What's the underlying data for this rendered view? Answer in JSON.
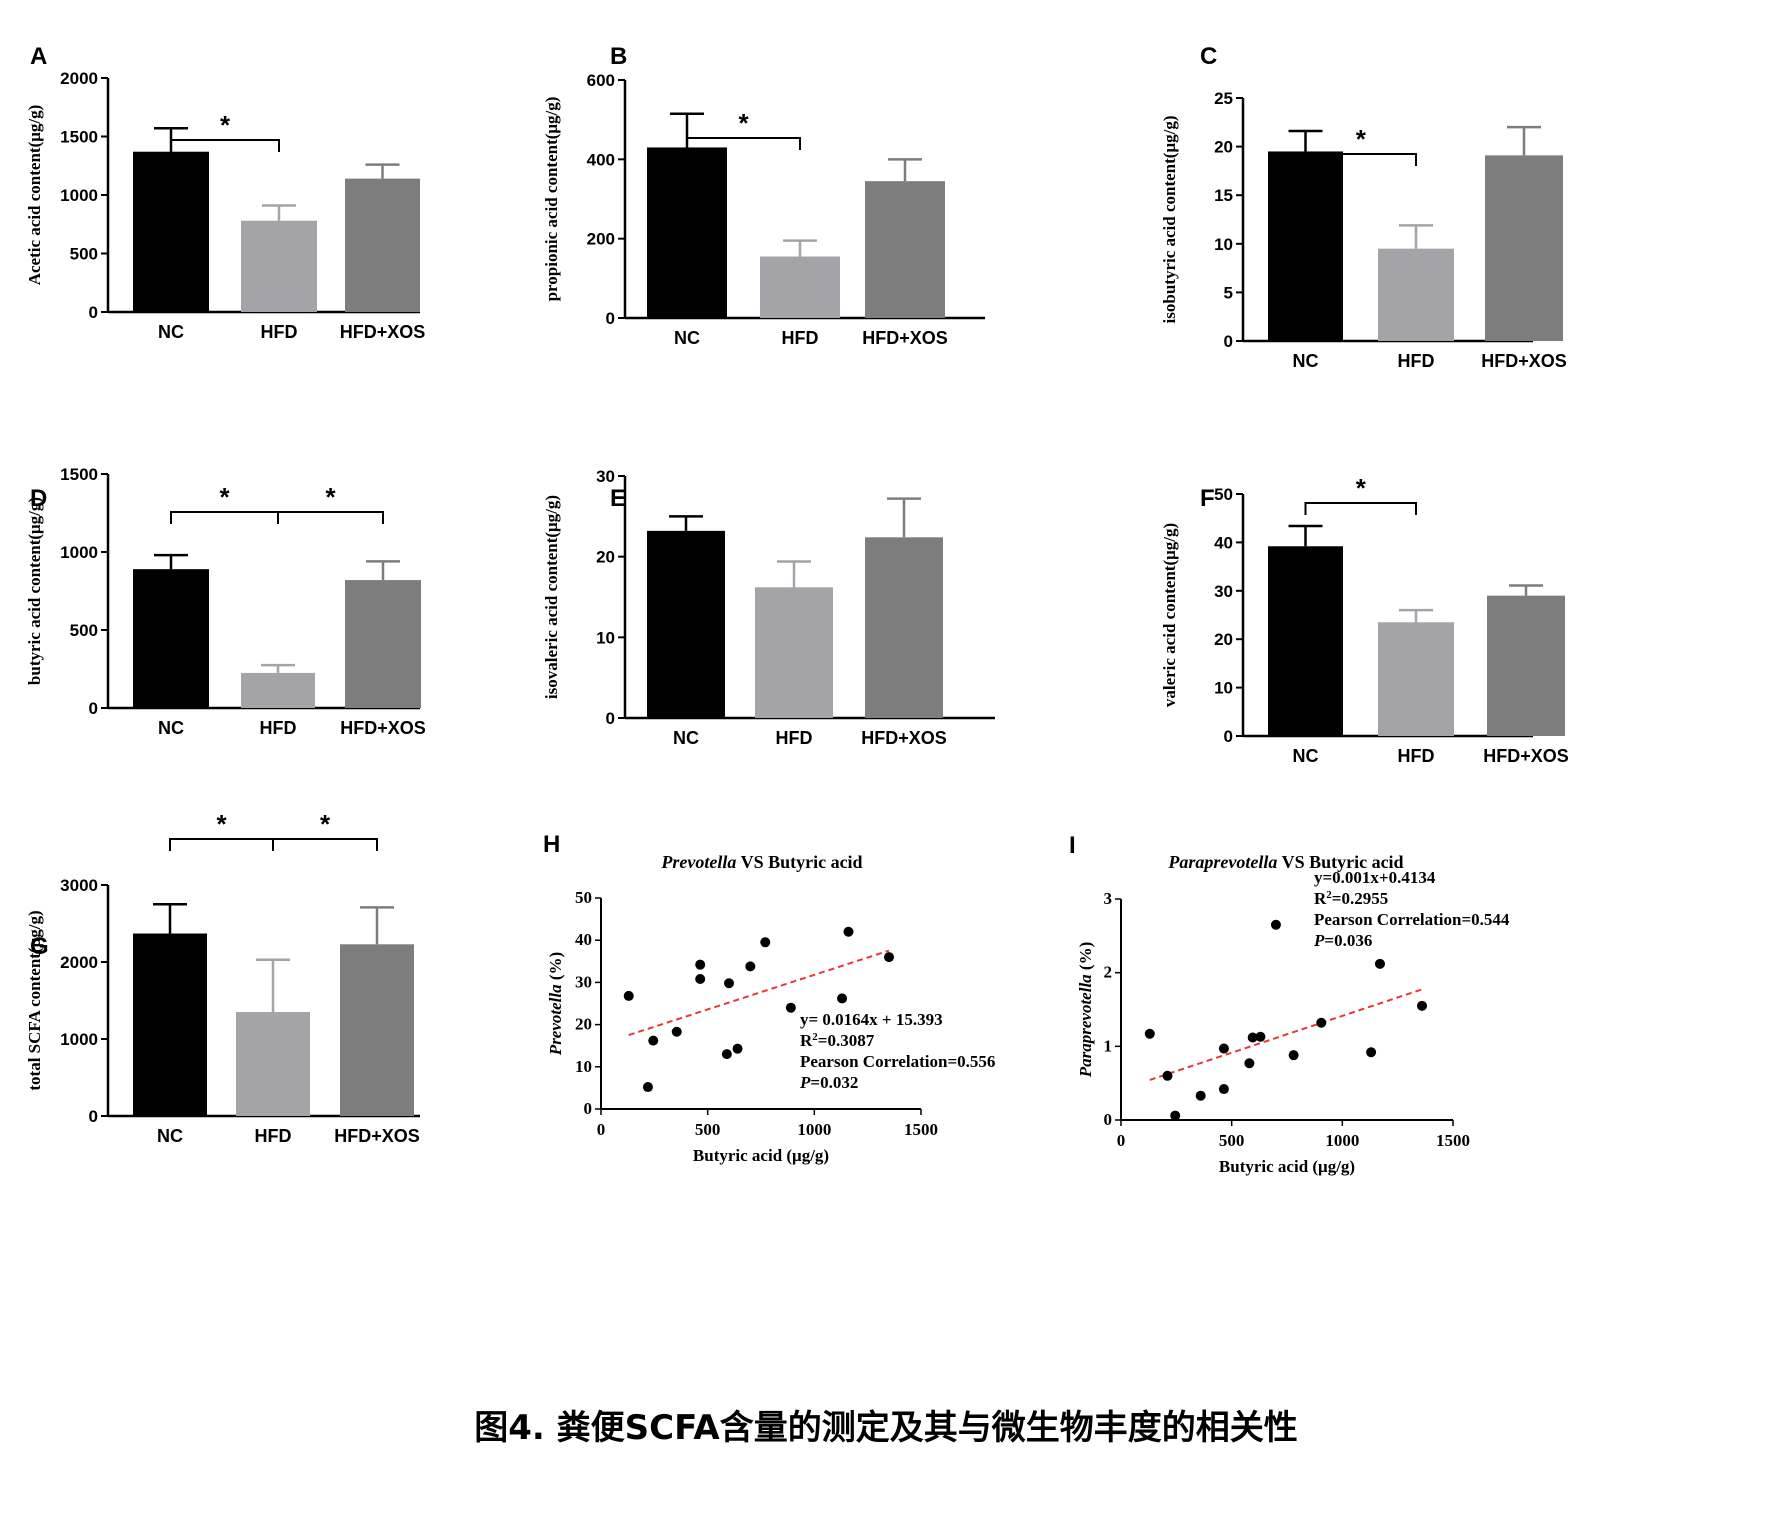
{
  "caption": "图4. 粪便SCFA含量的测定及其与微生物丰度的相关性",
  "colors": {
    "NC": "#000000",
    "HFD": "#a3a3a8",
    "HFD+XOS": "#7d7d7d",
    "trend": "#e53935"
  },
  "chart_data": [
    {
      "panel": "A",
      "type": "bar",
      "categories": [
        "NC",
        "HFD",
        "HFD+XOS"
      ],
      "values": [
        1370,
        780,
        1140
      ],
      "errors": [
        200,
        130,
        120
      ],
      "ylabel": "Acetic acid content(μg/g)",
      "ylim": [
        0,
        2000
      ],
      "yticks": [
        "0",
        "500",
        "1000",
        "1500",
        "2000"
      ],
      "significance": [
        {
          "from": 0,
          "to": 1,
          "label": "*"
        }
      ]
    },
    {
      "panel": "B",
      "type": "bar",
      "categories": [
        "NC",
        "HFD",
        "HFD+XOS"
      ],
      "values": [
        430,
        155,
        345
      ],
      "errors": [
        85,
        40,
        55
      ],
      "ylabel": "propionic acid content(μg/g)",
      "ylim": [
        0,
        600
      ],
      "yticks": [
        "0",
        "200",
        "400",
        "600"
      ],
      "significance": [
        {
          "from": 0,
          "to": 1,
          "label": "*"
        }
      ]
    },
    {
      "panel": "C",
      "type": "bar",
      "categories": [
        "NC",
        "HFD",
        "HFD+XOS"
      ],
      "values": [
        19.5,
        9.5,
        19.1
      ],
      "errors": [
        2.1,
        2.4,
        2.9
      ],
      "ylabel": "isobutyric acid content(μg/g)",
      "ylim": [
        0,
        25
      ],
      "yticks": [
        "0",
        "5",
        "10",
        "15",
        "20",
        "25"
      ],
      "significance": [
        {
          "from": 0,
          "to": 1,
          "label": "*"
        }
      ]
    },
    {
      "panel": "D",
      "type": "bar",
      "categories": [
        "NC",
        "HFD",
        "HFD+XOS"
      ],
      "values": [
        890,
        225,
        820
      ],
      "errors": [
        90,
        50,
        120
      ],
      "ylabel": "butyric acid content(μg/g)",
      "ylim": [
        0,
        1500
      ],
      "yticks": [
        "0",
        "500",
        "1000",
        "1500"
      ],
      "significance": [
        {
          "from": 0,
          "to": 1,
          "label": "*"
        },
        {
          "from": 1,
          "to": 2,
          "label": "*"
        }
      ]
    },
    {
      "panel": "E",
      "type": "bar",
      "categories": [
        "NC",
        "HFD",
        "HFD+XOS"
      ],
      "values": [
        23.2,
        16.2,
        22.4
      ],
      "errors": [
        1.8,
        3.2,
        4.8
      ],
      "ylabel": "isovaleric acid content(μg/g)",
      "ylim": [
        0,
        30
      ],
      "yticks": [
        "0",
        "10",
        "20",
        "30"
      ],
      "significance": []
    },
    {
      "panel": "F",
      "type": "bar",
      "categories": [
        "NC",
        "HFD",
        "HFD+XOS"
      ],
      "values": [
        39.2,
        23.5,
        29.0
      ],
      "errors": [
        4.2,
        2.5,
        2.1
      ],
      "ylabel": "valeric acid content(μg/g)",
      "ylim": [
        0,
        50
      ],
      "yticks": [
        "0",
        "10",
        "20",
        "30",
        "40",
        "50"
      ],
      "significance": [
        {
          "from": 0,
          "to": 1,
          "label": "*"
        }
      ]
    },
    {
      "panel": "G",
      "type": "bar",
      "categories": [
        "NC",
        "HFD",
        "HFD+XOS"
      ],
      "values": [
        2370,
        1350,
        2230
      ],
      "errors": [
        380,
        680,
        480
      ],
      "ylabel": "total SCFA content(μg/g)",
      "ylim": [
        0,
        3000
      ],
      "yticks": [
        "0",
        "1000",
        "2000",
        "3000"
      ],
      "significance": [
        {
          "from": 0,
          "to": 1,
          "label": "*"
        },
        {
          "from": 1,
          "to": 2,
          "label": "*"
        }
      ]
    },
    {
      "panel": "H",
      "type": "scatter",
      "title_italic": "Prevotella",
      "title_rest": " VS Butyric acid",
      "ylabel_italic": "Prevotella",
      "ylabel_rest": " (%)",
      "xlabel": "Butyric acid (μg/g)",
      "xlim": [
        0,
        1500
      ],
      "ylim": [
        0,
        50
      ],
      "xticks": [
        "0",
        "500",
        "1000",
        "1500"
      ],
      "yticks": [
        "0",
        "10",
        "20",
        "30",
        "40",
        "50"
      ],
      "points": [
        [
          130,
          26.8
        ],
        [
          220,
          5.2
        ],
        [
          245,
          16.2
        ],
        [
          355,
          18.3
        ],
        [
          465,
          34.2
        ],
        [
          465,
          30.8
        ],
        [
          590,
          13.0
        ],
        [
          600,
          29.8
        ],
        [
          640,
          14.3
        ],
        [
          700,
          33.8
        ],
        [
          770,
          39.5
        ],
        [
          890,
          24.0
        ],
        [
          1130,
          26.2
        ],
        [
          1160,
          42.0
        ],
        [
          1350,
          36.0
        ]
      ],
      "trend": {
        "slope": 0.0164,
        "intercept": 15.393,
        "x_from": 130,
        "x_to": 1350
      },
      "annotations": [
        {
          "text": "y= 0.0164x + 15.393"
        },
        {
          "pre": "R",
          "sup": "2",
          "post": "=0.3087"
        },
        {
          "text": "Pearson Correlation=0.556"
        },
        {
          "ital": "P",
          "post": "=0.032"
        }
      ]
    },
    {
      "panel": "I",
      "type": "scatter",
      "title_italic": "Paraprevotella",
      "title_rest": " VS Butyric acid",
      "ylabel_italic": "Paraprevotella",
      "ylabel_rest": " (%)",
      "xlabel": "Butyric acid (μg/g)",
      "xlim": [
        0,
        1500
      ],
      "ylim": [
        0,
        3
      ],
      "xticks": [
        "0",
        "500",
        "1000",
        "1500"
      ],
      "yticks": [
        "0",
        "1",
        "2",
        "3"
      ],
      "points": [
        [
          130,
          1.17
        ],
        [
          210,
          0.6
        ],
        [
          245,
          0.06
        ],
        [
          360,
          0.33
        ],
        [
          465,
          0.97
        ],
        [
          465,
          0.42
        ],
        [
          580,
          0.77
        ],
        [
          595,
          1.12
        ],
        [
          630,
          1.13
        ],
        [
          700,
          2.65
        ],
        [
          780,
          0.88
        ],
        [
          905,
          1.32
        ],
        [
          1130,
          0.92
        ],
        [
          1170,
          2.12
        ],
        [
          1360,
          1.55
        ]
      ],
      "trend": {
        "slope": 0.001,
        "intercept": 0.4134,
        "x_from": 130,
        "x_to": 1360
      },
      "annotations": [
        {
          "text": "y=0.001x+0.4134"
        },
        {
          "pre": "R",
          "sup": "2",
          "post": "=0.2955"
        },
        {
          "text": "Pearson Correlation=0.544"
        },
        {
          "ital": "P",
          "post": "=0.036"
        }
      ]
    }
  ]
}
